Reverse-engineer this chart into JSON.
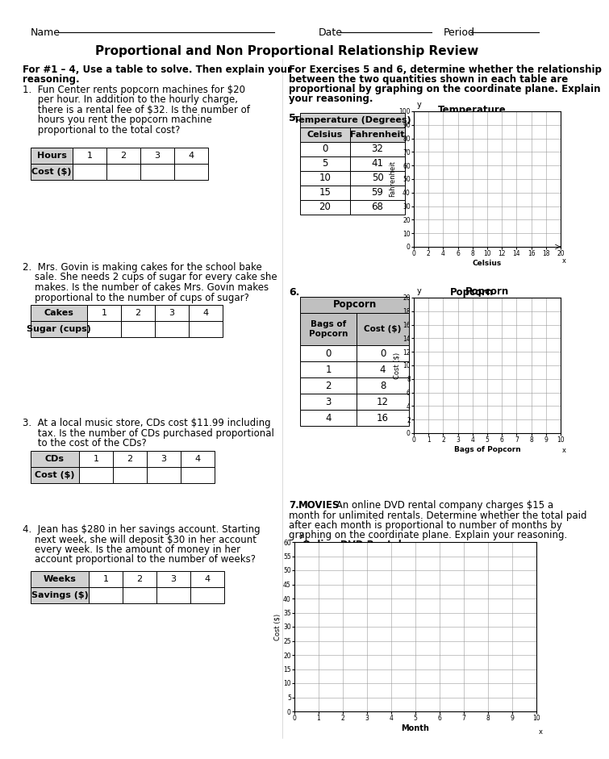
{
  "title": "Proportional and Non Proportional Relationship Review",
  "bg_color": "#ffffff",
  "left_header1": "For #1 – 4, Use a table to solve. Then explain your",
  "left_header2": "reasoning.",
  "right_header1": "For Exercises 5 and 6, determine whether the relationship",
  "right_header2": "between the two quantities shown in each table are",
  "right_header3": "proportional by graphing on the coordinate plane. Explain",
  "right_header4": "your reasoning.",
  "q1_lines": [
    "1.  Fun Center rents popcorn machines for $20",
    "     per hour. In addition to the hourly charge,",
    "     there is a rental fee of $32. Is the number of",
    "     hours you rent the popcorn machine",
    "     proportional to the total cost?"
  ],
  "q2_lines": [
    "2.  Mrs. Govin is making cakes for the school bake",
    "    sale. She needs 2 cups of sugar for every cake she",
    "    makes. Is the number of cakes Mrs. Govin makes",
    "    proportional to the number of cups of sugar?"
  ],
  "q3_lines": [
    "3.  At a local music store, CDs cost $11.99 including",
    "     tax. Is the number of CDs purchased proportional",
    "     to the cost of the CDs?"
  ],
  "q4_lines": [
    "4.  Jean has $280 in her savings account. Starting",
    "    next week, she will deposit $30 in her account",
    "    every week. Is the amount of money in her",
    "    account proportional to the number of weeks?"
  ],
  "q7_line1_bold": "7. MOVIES",
  "q7_line1_rest": " An online DVD rental company charges $15 a",
  "q7_lines_rest": [
    "month for unlimited rentals. Determine whether the total paid",
    "after each month is proportional to number of months by",
    "graphing on the coordinate plane. Explain your reasoning."
  ],
  "temp_data": [
    [
      "0",
      "32"
    ],
    [
      "5",
      "41"
    ],
    [
      "10",
      "50"
    ],
    [
      "15",
      "59"
    ],
    [
      "20",
      "68"
    ]
  ],
  "pop_data": [
    [
      "0",
      "0"
    ],
    [
      "1",
      "4"
    ],
    [
      "2",
      "8"
    ],
    [
      "3",
      "12"
    ],
    [
      "4",
      "16"
    ]
  ],
  "table_gray": "#c8c8c8",
  "table_white": "#ffffff"
}
